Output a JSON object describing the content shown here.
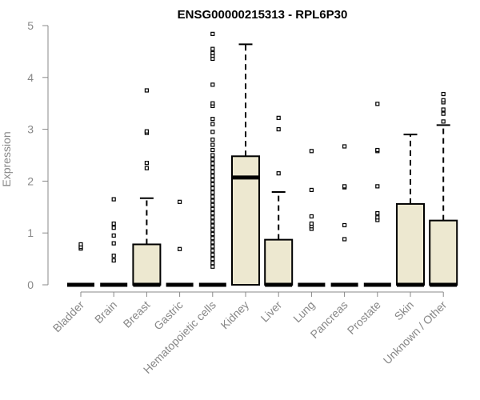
{
  "chart_data": {
    "type": "box",
    "title": "ENSG00000215313 - RPL6P30",
    "ylabel": "Expression",
    "xlabel": "",
    "ylim": [
      0,
      5
    ],
    "yticks": [
      0,
      1,
      2,
      3,
      4,
      5
    ],
    "categories": [
      "Bladder",
      "Brain",
      "Breast",
      "Gastric",
      "Hematopoietic cells",
      "Kidney",
      "Liver",
      "Lung",
      "Pancreas",
      "Prostate",
      "Skin",
      "Unknown / Other"
    ],
    "boxes": [
      {
        "category": "Bladder",
        "q1": 0,
        "median": 0,
        "q3": 0,
        "whisker_low": 0,
        "whisker_high": 0,
        "outliers": [
          0.7,
          0.73,
          0.78
        ]
      },
      {
        "category": "Brain",
        "q1": 0,
        "median": 0,
        "q3": 0,
        "whisker_low": 0,
        "whisker_high": 0,
        "outliers": [
          0.47,
          0.56,
          0.8,
          0.95,
          1.1,
          1.18,
          1.65
        ]
      },
      {
        "category": "Breast",
        "q1": 0,
        "median": 0,
        "q3": 0.78,
        "whisker_low": 0,
        "whisker_high": 1.67,
        "outliers": [
          2.25,
          2.35,
          2.93,
          2.96,
          3.75
        ]
      },
      {
        "category": "Gastric",
        "q1": 0,
        "median": 0,
        "q3": 0,
        "whisker_low": 0,
        "whisker_high": 0,
        "outliers": [
          0.69,
          1.6
        ]
      },
      {
        "category": "Hematopoietic cells",
        "q1": 0,
        "median": 0,
        "q3": 0,
        "whisker_low": 0,
        "whisker_high": 0,
        "outliers": [
          0.35,
          0.42,
          0.5,
          0.58,
          0.66,
          0.74,
          0.82,
          0.9,
          0.98,
          1.06,
          1.14,
          1.22,
          1.3,
          1.38,
          1.46,
          1.54,
          1.62,
          1.7,
          1.78,
          1.86,
          1.94,
          2.02,
          2.1,
          2.18,
          2.26,
          2.34,
          2.42,
          2.5,
          2.6,
          2.7,
          2.8,
          2.95,
          3.1,
          3.2,
          3.45,
          3.5,
          3.86,
          4.36,
          4.42,
          4.47,
          4.55,
          4.84
        ]
      },
      {
        "category": "Kidney",
        "q1": 0,
        "median": 2.07,
        "q3": 2.48,
        "whisker_low": 0,
        "whisker_high": 4.64,
        "outliers": []
      },
      {
        "category": "Liver",
        "q1": 0,
        "median": 0,
        "q3": 0.87,
        "whisker_low": 0,
        "whisker_high": 1.79,
        "outliers": [
          2.15,
          3.0,
          3.22
        ]
      },
      {
        "category": "Lung",
        "q1": 0,
        "median": 0,
        "q3": 0,
        "whisker_low": 0,
        "whisker_high": 0,
        "outliers": [
          1.08,
          1.13,
          1.18,
          1.32,
          1.83,
          2.58
        ]
      },
      {
        "category": "Pancreas",
        "q1": 0,
        "median": 0,
        "q3": 0,
        "whisker_low": 0,
        "whisker_high": 0,
        "outliers": [
          0.88,
          1.15,
          1.88,
          1.9,
          2.67
        ]
      },
      {
        "category": "Prostate",
        "q1": 0,
        "median": 0,
        "q3": 0,
        "whisker_low": 0,
        "whisker_high": 0,
        "outliers": [
          1.25,
          1.3,
          1.38,
          1.9,
          2.58,
          2.6,
          3.49
        ]
      },
      {
        "category": "Skin",
        "q1": 0,
        "median": 0,
        "q3": 1.56,
        "whisker_low": 0,
        "whisker_high": 2.9,
        "outliers": []
      },
      {
        "category": "Unknown / Other",
        "q1": 0,
        "median": 0,
        "q3": 1.24,
        "whisker_low": 0,
        "whisker_high": 3.08,
        "outliers": [
          3.15,
          3.3,
          3.38,
          3.52,
          3.56,
          3.68
        ]
      }
    ],
    "colors": {
      "box_fill": "#ede8d0",
      "box_stroke": "#000000",
      "axis_text": "#888888",
      "axis_line": "#888888"
    },
    "grid": false,
    "legend": "none"
  }
}
